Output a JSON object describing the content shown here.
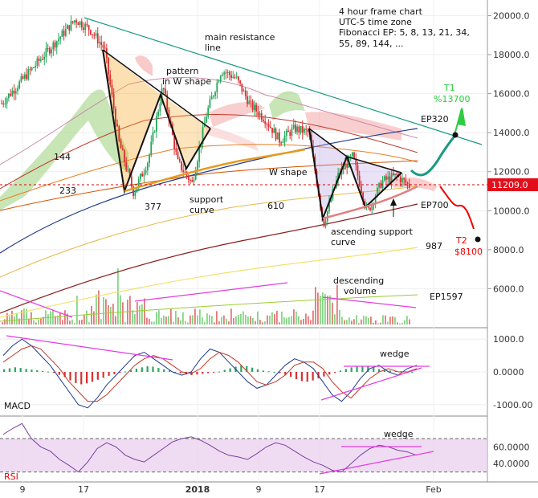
{
  "chart_data": {
    "type": "candlestick",
    "timeframe_note": [
      "4 hour frame chart",
      "UTC-5 time zone",
      "Fibonacci EP: 5, 8, 13, 21, 34,",
      "55, 89, 144, ..."
    ],
    "x_ticks": [
      "9",
      "17",
      "2018",
      "9",
      "17",
      "Feb"
    ],
    "price_axis": {
      "ticks": [
        "20000.0",
        "18000.0",
        "16000.0",
        "14000.0",
        "12000.0",
        "10000.0",
        "8000.0",
        "6000.0"
      ],
      "ylim": [
        4000,
        20800
      ],
      "current_price": "11209.0"
    },
    "price_path": [
      19800,
      19300,
      18300,
      13500,
      10900,
      12600,
      16400,
      12500,
      11400,
      15000,
      17200,
      16800,
      15400,
      14700,
      13600,
      14200,
      14000,
      9300,
      11800,
      12800,
      9900,
      11500,
      11800,
      11209
    ],
    "annotations": {
      "main_resistance": [
        "main resistance",
        "line"
      ],
      "pattern_w": [
        "pattern",
        "in W shape"
      ],
      "w_shape": "W shape",
      "support_curve": [
        "support",
        "curve"
      ],
      "ascending_support": [
        "ascending support",
        "curve"
      ],
      "descending_volume": [
        "descending",
        "volume"
      ],
      "wedge": "wedge",
      "t1": [
        "T1",
        "%13700"
      ],
      "t2": [
        "T2",
        "$8100"
      ],
      "targets": {
        "t1_price": 13700,
        "t2_price": 8100
      },
      "ep_labels": [
        "EP320",
        "EP700",
        "EP1597"
      ],
      "ma_labels": [
        "144",
        "233",
        "377",
        "610",
        "987"
      ]
    },
    "macd": {
      "label": "MACD",
      "ticks": [
        "1000.0",
        "0.0000",
        "-1000.00"
      ],
      "ylim": [
        -1300,
        1300
      ],
      "hist": [
        80,
        110,
        140,
        120,
        90,
        70,
        50,
        30,
        10,
        -30,
        -90,
        -160,
        -260,
        -340,
        -380,
        -350,
        -300,
        -240,
        -180,
        -120,
        -70,
        -30,
        10,
        50,
        100,
        140,
        170,
        160,
        120,
        80,
        40,
        0,
        -40,
        -80,
        -100,
        -80,
        -60,
        -40,
        -20,
        10,
        60,
        110,
        160,
        200,
        180,
        130,
        80,
        40,
        20,
        0,
        -40,
        -90,
        -150,
        -220,
        -280,
        -300,
        -260,
        -200,
        -140,
        -80,
        -20,
        40,
        90,
        140,
        170,
        180,
        160,
        130,
        90,
        60,
        40,
        30,
        20,
        10,
        0
      ],
      "macd_line": [
        500,
        800,
        1000,
        800,
        500,
        200,
        -200,
        -600,
        -1000,
        -1100,
        -800,
        -400,
        -100,
        200,
        500,
        600,
        400,
        200,
        0,
        -100,
        0,
        400,
        700,
        600,
        300,
        0,
        -300,
        -500,
        -400,
        -100,
        200,
        400,
        300,
        100,
        -300,
        -700,
        -900,
        -600,
        -200,
        100,
        200,
        0,
        -100,
        100,
        200
      ],
      "signal_line": [
        300,
        500,
        700,
        800,
        700,
        400,
        100,
        -300,
        -600,
        -900,
        -900,
        -700,
        -400,
        -100,
        200,
        400,
        500,
        400,
        200,
        0,
        -50,
        100,
        400,
        600,
        500,
        300,
        0,
        -300,
        -400,
        -300,
        -100,
        200,
        300,
        300,
        100,
        -300,
        -600,
        -800,
        -500,
        -200,
        0,
        100,
        0,
        0,
        100
      ]
    },
    "rsi": {
      "label": "RSI",
      "ticks": [
        "60.0000",
        "40.0000"
      ],
      "ylim": [
        20,
        95
      ],
      "band": [
        30,
        70
      ],
      "values": [
        75,
        82,
        88,
        70,
        60,
        55,
        45,
        38,
        30,
        42,
        58,
        65,
        60,
        50,
        45,
        42,
        50,
        58,
        66,
        70,
        72,
        68,
        62,
        55,
        50,
        48,
        45,
        52,
        60,
        65,
        62,
        55,
        48,
        42,
        38,
        32,
        30,
        40,
        50,
        58,
        62,
        60,
        56,
        54,
        50
      ]
    }
  }
}
